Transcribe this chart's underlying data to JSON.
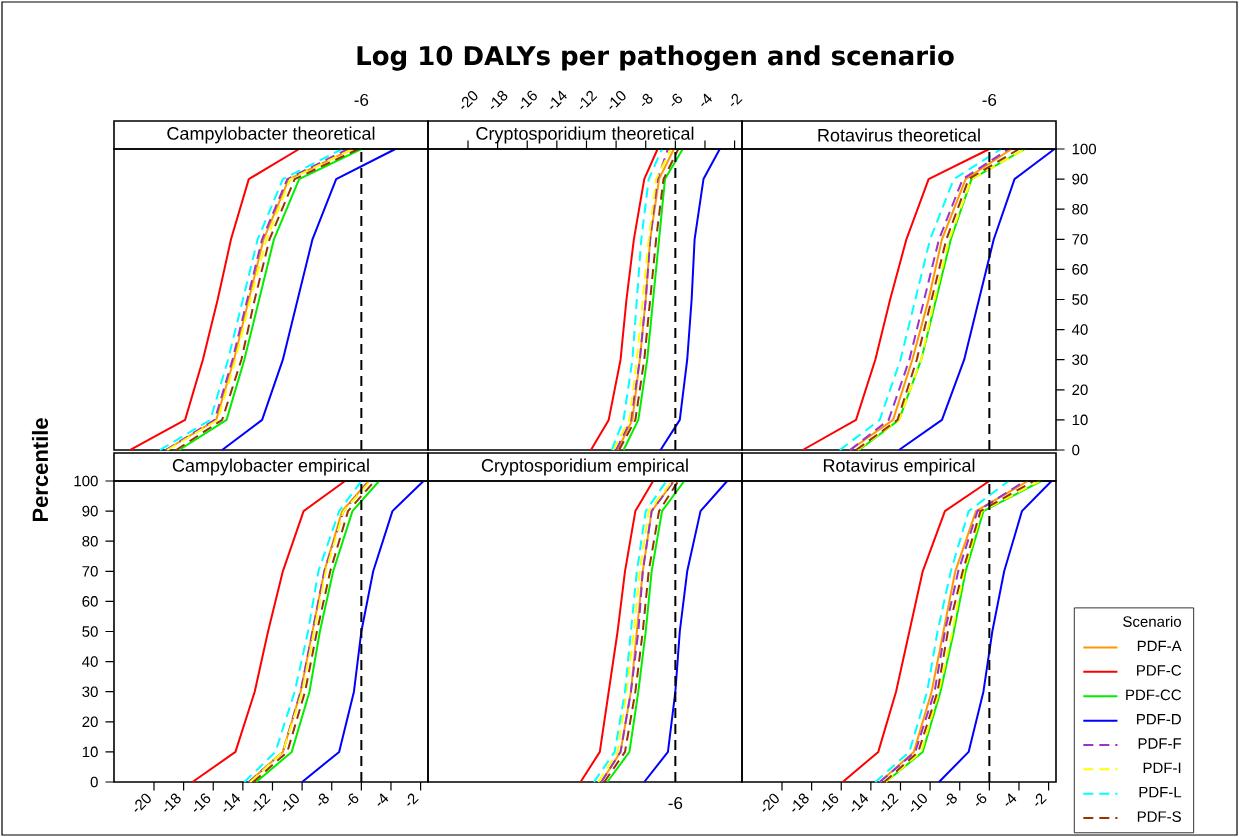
{
  "chart_data": [
    {
      "type": "line",
      "title": "Campylobacter theoretical",
      "annotations": [
        "Log 10 DALYs per pathogen and scenario"
      ],
      "xlim": [
        -22.7,
        -1.5
      ],
      "ylim": [
        0,
        100
      ],
      "tick_labels": false,
      "ref_lines": [
        {
          "axis": "x",
          "value": -6,
          "label": "-6",
          "color": "#000000",
          "line_style": "dashed"
        }
      ],
      "series": [
        {
          "color": "#ff9900",
          "line_style": "solid",
          "x": [
            -19.2,
            -15.8,
            -14.6,
            -13.6,
            -12.6,
            -10.9,
            -6.6
          ],
          "values": [
            0,
            10,
            30,
            50,
            70,
            90,
            100
          ]
        },
        {
          "color": "#ff0000",
          "line_style": "solid",
          "x": [
            -21.6,
            -17.9,
            -16.7,
            -15.7,
            -14.8,
            -13.6,
            -10.2
          ],
          "values": [
            0,
            10,
            30,
            50,
            70,
            90,
            100
          ]
        },
        {
          "color": "#00ee00",
          "line_style": "solid",
          "x": [
            -18.3,
            -15.1,
            -13.9,
            -12.9,
            -11.9,
            -10.2,
            -6.0
          ],
          "values": [
            0,
            10,
            30,
            50,
            70,
            90,
            100
          ]
        },
        {
          "color": "#0000ff",
          "line_style": "solid",
          "x": [
            -15.4,
            -12.7,
            -11.3,
            -10.3,
            -9.3,
            -7.7,
            -3.7
          ],
          "values": [
            0,
            10,
            30,
            50,
            70,
            90,
            100
          ]
        },
        {
          "color": "#9933cc",
          "line_style": "dashed",
          "x": [
            -19.2,
            -15.9,
            -14.7,
            -13.7,
            -12.7,
            -11.0,
            -6.9
          ],
          "values": [
            0,
            10,
            30,
            50,
            70,
            90,
            100
          ]
        },
        {
          "color": "#ffff00",
          "line_style": "dashed",
          "x": [
            -19.1,
            -15.7,
            -14.5,
            -13.5,
            -12.4,
            -10.8,
            -6.6
          ],
          "values": [
            0,
            10,
            30,
            50,
            70,
            90,
            100
          ]
        },
        {
          "color": "#00ffff",
          "line_style": "dashed",
          "x": [
            -19.6,
            -16.2,
            -15.0,
            -14.0,
            -13.0,
            -11.3,
            -7.3
          ],
          "values": [
            0,
            10,
            30,
            50,
            70,
            90,
            100
          ]
        },
        {
          "color": "#993300",
          "line_style": "dashed",
          "x": [
            -18.5,
            -15.4,
            -14.1,
            -13.2,
            -12.2,
            -10.5,
            -6.2
          ],
          "values": [
            0,
            10,
            30,
            50,
            70,
            90,
            100
          ]
        }
      ]
    },
    {
      "type": "line",
      "title": "Cryptosporidium theoretical",
      "xlim": [
        -22.7,
        -1.5
      ],
      "xticks": [
        -20,
        -18,
        -16,
        -14,
        -12,
        -10,
        -8,
        -6,
        -4,
        -2
      ],
      "ylim": [
        0,
        100
      ],
      "tick_labels": "x",
      "ref_lines": [
        {
          "axis": "x",
          "value": -6,
          "color": "#000000",
          "line_style": "dashed"
        }
      ],
      "series": [
        {
          "color": "#ff9900",
          "line_style": "solid",
          "x": [
            -9.9,
            -8.9,
            -8.4,
            -8.0,
            -7.7,
            -7.1,
            -6.1
          ],
          "values": [
            0,
            10,
            30,
            50,
            70,
            90,
            100
          ]
        },
        {
          "color": "#ff0000",
          "line_style": "solid",
          "x": [
            -11.7,
            -10.5,
            -9.7,
            -9.3,
            -8.8,
            -8.1,
            -7.2
          ],
          "values": [
            0,
            10,
            30,
            50,
            70,
            90,
            100
          ]
        },
        {
          "color": "#00ee00",
          "line_style": "solid",
          "x": [
            -9.5,
            -8.5,
            -7.9,
            -7.5,
            -7.1,
            -6.7,
            -5.5
          ],
          "values": [
            0,
            10,
            30,
            50,
            70,
            90,
            100
          ]
        },
        {
          "color": "#0000ff",
          "line_style": "solid",
          "x": [
            -7.0,
            -5.7,
            -5.2,
            -4.9,
            -4.7,
            -4.1,
            -3.0
          ],
          "values": [
            0,
            10,
            30,
            50,
            70,
            90,
            100
          ]
        },
        {
          "color": "#9933cc",
          "line_style": "dashed",
          "x": [
            -10.0,
            -9.0,
            -8.4,
            -8.0,
            -7.7,
            -7.2,
            -6.5
          ],
          "values": [
            0,
            10,
            30,
            50,
            70,
            90,
            100
          ]
        },
        {
          "color": "#ffff00",
          "line_style": "dashed",
          "x": [
            -10.2,
            -9.1,
            -8.6,
            -8.2,
            -7.8,
            -7.3,
            -6.3
          ],
          "values": [
            0,
            10,
            30,
            50,
            70,
            90,
            100
          ]
        },
        {
          "color": "#00ffff",
          "line_style": "dashed",
          "x": [
            -10.3,
            -9.5,
            -8.9,
            -8.6,
            -8.3,
            -7.8,
            -6.9
          ],
          "values": [
            0,
            10,
            30,
            50,
            70,
            90,
            100
          ]
        },
        {
          "color": "#993300",
          "line_style": "dashed",
          "x": [
            -9.8,
            -8.7,
            -8.1,
            -7.7,
            -7.3,
            -6.8,
            -5.8
          ],
          "values": [
            0,
            10,
            30,
            50,
            70,
            90,
            100
          ]
        }
      ]
    },
    {
      "type": "line",
      "title": "Rotavirus theoretical",
      "xlim": [
        -22.7,
        -1.5
      ],
      "ylim": [
        0,
        100
      ],
      "yticks": [
        0,
        10,
        20,
        30,
        40,
        50,
        60,
        70,
        80,
        90,
        100
      ],
      "tick_labels": "y",
      "ref_lines": [
        {
          "axis": "x",
          "value": -6,
          "label": "-6",
          "color": "#000000",
          "line_style": "dashed"
        }
      ],
      "series": [
        {
          "color": "#ff9900",
          "line_style": "solid",
          "x": [
            -15.4,
            -12.5,
            -11.2,
            -10.1,
            -9.2,
            -7.6,
            -4.5
          ],
          "values": [
            0,
            10,
            30,
            50,
            70,
            90,
            100
          ]
        },
        {
          "color": "#ff0000",
          "line_style": "solid",
          "x": [
            -18.6,
            -15.0,
            -13.7,
            -12.7,
            -11.6,
            -10.1,
            -6.0
          ],
          "values": [
            0,
            10,
            30,
            50,
            70,
            90,
            100
          ]
        },
        {
          "color": "#00ee00",
          "line_style": "solid",
          "x": [
            -14.8,
            -12.1,
            -10.6,
            -9.6,
            -8.6,
            -7.2,
            -3.6
          ],
          "values": [
            0,
            10,
            30,
            50,
            70,
            90,
            100
          ]
        },
        {
          "color": "#0000ff",
          "line_style": "solid",
          "x": [
            -12.1,
            -9.2,
            -7.7,
            -6.7,
            -5.7,
            -4.3,
            -1.6
          ],
          "values": [
            0,
            10,
            30,
            50,
            70,
            90,
            100
          ]
        },
        {
          "color": "#9933cc",
          "line_style": "dashed",
          "x": [
            -15.4,
            -12.8,
            -11.4,
            -10.4,
            -9.4,
            -7.8,
            -4.7
          ],
          "values": [
            0,
            10,
            30,
            50,
            70,
            90,
            100
          ]
        },
        {
          "color": "#ffff00",
          "line_style": "dashed",
          "x": [
            -14.9,
            -12.1,
            -10.6,
            -9.7,
            -8.7,
            -7.2,
            -3.6
          ],
          "values": [
            0,
            10,
            30,
            50,
            70,
            90,
            100
          ]
        },
        {
          "color": "#00ffff",
          "line_style": "dashed",
          "x": [
            -16.1,
            -13.4,
            -12.0,
            -11.0,
            -10.0,
            -8.4,
            -5.2
          ],
          "values": [
            0,
            10,
            30,
            50,
            70,
            90,
            100
          ]
        },
        {
          "color": "#993300",
          "line_style": "dashed",
          "x": [
            -15.0,
            -12.2,
            -10.9,
            -9.9,
            -8.9,
            -7.4,
            -4.0
          ],
          "values": [
            0,
            10,
            30,
            50,
            70,
            90,
            100
          ]
        }
      ]
    },
    {
      "type": "line",
      "title": "Campylobacter empirical",
      "ylabel": "Percentile",
      "xlim": [
        -22.7,
        -1.5
      ],
      "xticks": [
        -20,
        -18,
        -16,
        -14,
        -12,
        -10,
        -8,
        -6,
        -4,
        -2
      ],
      "ylim": [
        0,
        100
      ],
      "yticks": [
        0,
        10,
        20,
        30,
        40,
        50,
        60,
        70,
        80,
        90,
        100
      ],
      "ref_lines": [
        {
          "axis": "x",
          "value": -6,
          "color": "#000000",
          "line_style": "dashed"
        }
      ],
      "series": [
        {
          "color": "#ff9900",
          "line_style": "solid",
          "x": [
            -13.6,
            -11.3,
            -10.1,
            -9.3,
            -8.5,
            -7.3,
            -5.5
          ],
          "values": [
            0,
            10,
            30,
            50,
            70,
            90,
            100
          ]
        },
        {
          "color": "#ff0000",
          "line_style": "solid",
          "x": [
            -17.4,
            -14.5,
            -13.2,
            -12.3,
            -11.3,
            -9.9,
            -7.1
          ],
          "values": [
            0,
            10,
            30,
            50,
            70,
            90,
            100
          ]
        },
        {
          "color": "#00ee00",
          "line_style": "solid",
          "x": [
            -13.1,
            -10.7,
            -9.5,
            -8.8,
            -7.9,
            -6.6,
            -4.8
          ],
          "values": [
            0,
            10,
            30,
            50,
            70,
            90,
            100
          ]
        },
        {
          "color": "#0000ff",
          "line_style": "solid",
          "x": [
            -10.0,
            -7.5,
            -6.5,
            -6.0,
            -5.2,
            -3.9,
            -1.8
          ],
          "values": [
            0,
            10,
            30,
            50,
            70,
            90,
            100
          ]
        },
        {
          "color": "#9933cc",
          "line_style": "dashed",
          "x": [
            -13.6,
            -11.3,
            -10.1,
            -9.3,
            -8.5,
            -7.2,
            -5.5
          ],
          "values": [
            0,
            10,
            30,
            50,
            70,
            90,
            100
          ]
        },
        {
          "color": "#ffff00",
          "line_style": "dashed",
          "x": [
            -13.5,
            -11.3,
            -10.0,
            -9.2,
            -8.4,
            -7.2,
            -5.4
          ],
          "values": [
            0,
            10,
            30,
            50,
            70,
            90,
            100
          ]
        },
        {
          "color": "#00ffff",
          "line_style": "dashed",
          "x": [
            -13.9,
            -11.8,
            -10.5,
            -9.6,
            -8.9,
            -7.5,
            -6.0
          ],
          "values": [
            0,
            10,
            30,
            50,
            70,
            90,
            100
          ]
        },
        {
          "color": "#993300",
          "line_style": "dashed",
          "x": [
            -13.3,
            -11.0,
            -9.8,
            -9.0,
            -8.1,
            -6.9,
            -5.1
          ],
          "values": [
            0,
            10,
            30,
            50,
            70,
            90,
            100
          ]
        }
      ]
    },
    {
      "type": "line",
      "title": "Cryptosporidium empirical",
      "xlim": [
        -22.7,
        -1.5
      ],
      "ylim": [
        0,
        100
      ],
      "tick_labels": false,
      "ref_lines": [
        {
          "axis": "x",
          "value": -6,
          "label": "-6",
          "color": "#000000",
          "line_style": "dashed"
        }
      ],
      "series": [
        {
          "color": "#ff9900",
          "line_style": "solid",
          "x": [
            -11.0,
            -9.7,
            -9.0,
            -8.6,
            -8.2,
            -7.6,
            -6.1
          ],
          "values": [
            0,
            10,
            30,
            50,
            70,
            90,
            100
          ]
        },
        {
          "color": "#ff0000",
          "line_style": "solid",
          "x": [
            -12.4,
            -11.1,
            -10.5,
            -9.9,
            -9.4,
            -8.7,
            -7.5
          ],
          "values": [
            0,
            10,
            30,
            50,
            70,
            90,
            100
          ]
        },
        {
          "color": "#00ee00",
          "line_style": "solid",
          "x": [
            -10.6,
            -9.1,
            -8.5,
            -8.0,
            -7.6,
            -6.9,
            -5.4
          ],
          "values": [
            0,
            10,
            30,
            50,
            70,
            90,
            100
          ]
        },
        {
          "color": "#0000ff",
          "line_style": "solid",
          "x": [
            -8.1,
            -6.5,
            -6.0,
            -5.7,
            -5.2,
            -4.3,
            -2.5
          ],
          "values": [
            0,
            10,
            30,
            50,
            70,
            90,
            100
          ]
        },
        {
          "color": "#9933cc",
          "line_style": "dashed",
          "x": [
            -11.0,
            -9.7,
            -9.0,
            -8.5,
            -8.2,
            -7.6,
            -6.1
          ],
          "values": [
            0,
            10,
            30,
            50,
            70,
            90,
            100
          ]
        },
        {
          "color": "#ffff00",
          "line_style": "dashed",
          "x": [
            -11.2,
            -9.9,
            -9.3,
            -8.8,
            -8.4,
            -7.8,
            -6.2
          ],
          "values": [
            0,
            10,
            30,
            50,
            70,
            90,
            100
          ]
        },
        {
          "color": "#00ffff",
          "line_style": "dashed",
          "x": [
            -11.5,
            -10.1,
            -9.4,
            -9.0,
            -8.6,
            -8.0,
            -6.6
          ],
          "values": [
            0,
            10,
            30,
            50,
            70,
            90,
            100
          ]
        },
        {
          "color": "#993300",
          "line_style": "dashed",
          "x": [
            -10.8,
            -9.4,
            -8.7,
            -8.2,
            -7.8,
            -7.1,
            -5.8
          ],
          "values": [
            0,
            10,
            30,
            50,
            70,
            90,
            100
          ]
        }
      ]
    },
    {
      "type": "line",
      "title": "Rotavirus empirical",
      "xlim": [
        -22.7,
        -1.5
      ],
      "xticks": [
        -20,
        -18,
        -16,
        -14,
        -12,
        -10,
        -8,
        -6,
        -4,
        -2
      ],
      "ylim": [
        0,
        100
      ],
      "tick_labels": "x",
      "legend": "bottom right",
      "legend_title": "Scenario",
      "ref_lines": [
        {
          "axis": "x",
          "value": -6,
          "color": "#000000",
          "line_style": "dashed"
        }
      ],
      "series": [
        {
          "name": "PDF-A",
          "color": "#ff9900",
          "line_style": "solid",
          "x": [
            -13.4,
            -11.1,
            -9.9,
            -9.1,
            -8.3,
            -6.9,
            -3.4
          ],
          "values": [
            0,
            10,
            30,
            50,
            70,
            90,
            100
          ]
        },
        {
          "name": "PDF-C",
          "color": "#ff0000",
          "line_style": "solid",
          "x": [
            -15.9,
            -13.5,
            -12.3,
            -11.4,
            -10.5,
            -9.0,
            -6.0
          ],
          "values": [
            0,
            10,
            30,
            50,
            70,
            90,
            100
          ]
        },
        {
          "name": "PDF-CC",
          "color": "#00ee00",
          "line_style": "solid",
          "x": [
            -13.0,
            -10.5,
            -9.3,
            -8.4,
            -7.6,
            -6.4,
            -2.5
          ],
          "values": [
            0,
            10,
            30,
            50,
            70,
            90,
            100
          ]
        },
        {
          "name": "PDF-D",
          "color": "#0000ff",
          "line_style": "solid",
          "x": [
            -9.4,
            -7.4,
            -6.4,
            -5.8,
            -5.0,
            -3.8,
            -1.8
          ],
          "values": [
            0,
            10,
            30,
            50,
            70,
            90,
            100
          ]
        },
        {
          "name": "PDF-F",
          "color": "#9933cc",
          "line_style": "dashed",
          "x": [
            -13.4,
            -11.0,
            -9.7,
            -9.0,
            -8.1,
            -6.8,
            -3.6
          ],
          "values": [
            0,
            10,
            30,
            50,
            70,
            90,
            100
          ]
        },
        {
          "name": "PDF-I",
          "color": "#ffff00",
          "line_style": "dashed",
          "x": [
            -13.0,
            -10.6,
            -9.4,
            -8.5,
            -7.7,
            -6.5,
            -2.6
          ],
          "values": [
            0,
            10,
            30,
            50,
            70,
            90,
            100
          ]
        },
        {
          "name": "PDF-L",
          "color": "#00ffff",
          "line_style": "dashed",
          "x": [
            -13.7,
            -11.4,
            -10.2,
            -9.5,
            -8.6,
            -7.4,
            -4.7
          ],
          "values": [
            0,
            10,
            30,
            50,
            70,
            90,
            100
          ]
        },
        {
          "name": "PDF-S",
          "color": "#993300",
          "line_style": "dashed",
          "x": [
            -13.1,
            -10.8,
            -9.5,
            -8.8,
            -7.8,
            -6.6,
            -3.0
          ],
          "values": [
            0,
            10,
            30,
            50,
            70,
            90,
            100
          ]
        }
      ]
    }
  ]
}
